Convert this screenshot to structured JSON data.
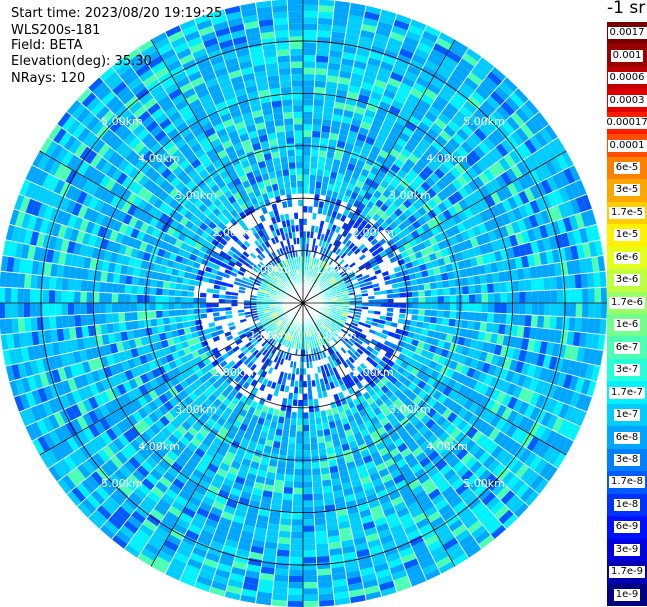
{
  "header": {
    "start_time": "Start time: 2023/08/20 19:19:25",
    "instrument": "WLS200s-181",
    "field": "Field: BETA",
    "elevation": "Elevation(deg): 35.30",
    "nrays": "NRays: 120"
  },
  "unit_label": "-1 sr",
  "range_labels": [
    "1.00km",
    "2.00km",
    "3.00km",
    "4.00km",
    "5.00km"
  ],
  "ppi": {
    "max_range_km": 5.8,
    "ring_step_km": 1.0,
    "rays": 120,
    "spokes": 12,
    "colors": {
      "grid": "#000000",
      "ray_separator": "#ffffff",
      "label": "#ffffff",
      "background": "#ffffff"
    }
  },
  "colorbar": {
    "levels": [
      {
        "label": "0.0017",
        "color": "#7a0000"
      },
      {
        "label": "0.001",
        "color": "#990000"
      },
      {
        "label": "0.0006",
        "color": "#c00000"
      },
      {
        "label": "0.0003",
        "color": "#e00000"
      },
      {
        "label": "0.00017",
        "color": "#ff1a00"
      },
      {
        "label": "0.0001",
        "color": "#ff4d00"
      },
      {
        "label": "6e-5",
        "color": "#ff8000"
      },
      {
        "label": "3e-5",
        "color": "#ffa600"
      },
      {
        "label": "1.7e-5",
        "color": "#ffcc00"
      },
      {
        "label": "1e-5",
        "color": "#fff200"
      },
      {
        "label": "6e-6",
        "color": "#e6ff1a"
      },
      {
        "label": "3e-6",
        "color": "#c0ff40"
      },
      {
        "label": "1.7e-6",
        "color": "#99ff66"
      },
      {
        "label": "1e-6",
        "color": "#73ff8c"
      },
      {
        "label": "6e-7",
        "color": "#4dffb3"
      },
      {
        "label": "3e-7",
        "color": "#26ffd9"
      },
      {
        "label": "1.7e-7",
        "color": "#00f2ff"
      },
      {
        "label": "1e-7",
        "color": "#00ccff"
      },
      {
        "label": "6e-8",
        "color": "#00a6ff"
      },
      {
        "label": "3e-8",
        "color": "#0080ff"
      },
      {
        "label": "1.7e-8",
        "color": "#005aff"
      },
      {
        "label": "1e-8",
        "color": "#0033ff"
      },
      {
        "label": "6e-9",
        "color": "#0010ff"
      },
      {
        "label": "3e-9",
        "color": "#0000e0"
      },
      {
        "label": "1.7e-9",
        "color": "#0000b0"
      },
      {
        "label": "1e-9",
        "color": "#000080"
      }
    ]
  }
}
